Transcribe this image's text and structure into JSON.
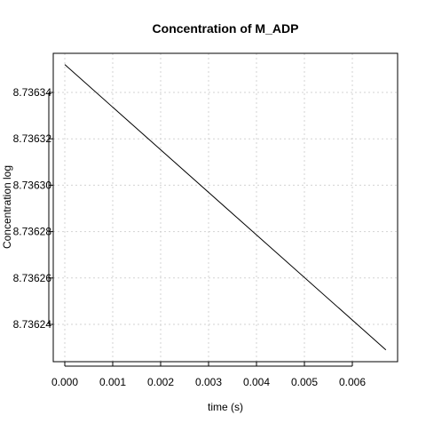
{
  "chart_data": {
    "type": "line",
    "title": "Concentration of M_ADP",
    "xlabel": "time (s)",
    "ylabel": "Concentration log",
    "xlim": [
      0.0,
      0.0067
    ],
    "ylim": [
      8.736229,
      8.736355
    ],
    "grid": true,
    "x_ticks": [
      "0.000",
      "0.001",
      "0.002",
      "0.003",
      "0.004",
      "0.005",
      "0.006"
    ],
    "x_tick_values": [
      0.0,
      0.001,
      0.002,
      0.003,
      0.004,
      0.005,
      0.006
    ],
    "y_ticks": [
      "8.73624",
      "8.73626",
      "8.73628",
      "8.73630",
      "8.73632",
      "8.73634"
    ],
    "y_tick_values": [
      8.73624,
      8.73626,
      8.73628,
      8.7363,
      8.73632,
      8.73634
    ],
    "series": [
      {
        "x": [
          0.0,
          0.0067
        ],
        "y": [
          8.736352,
          8.736229
        ],
        "color": "#000000"
      }
    ]
  }
}
